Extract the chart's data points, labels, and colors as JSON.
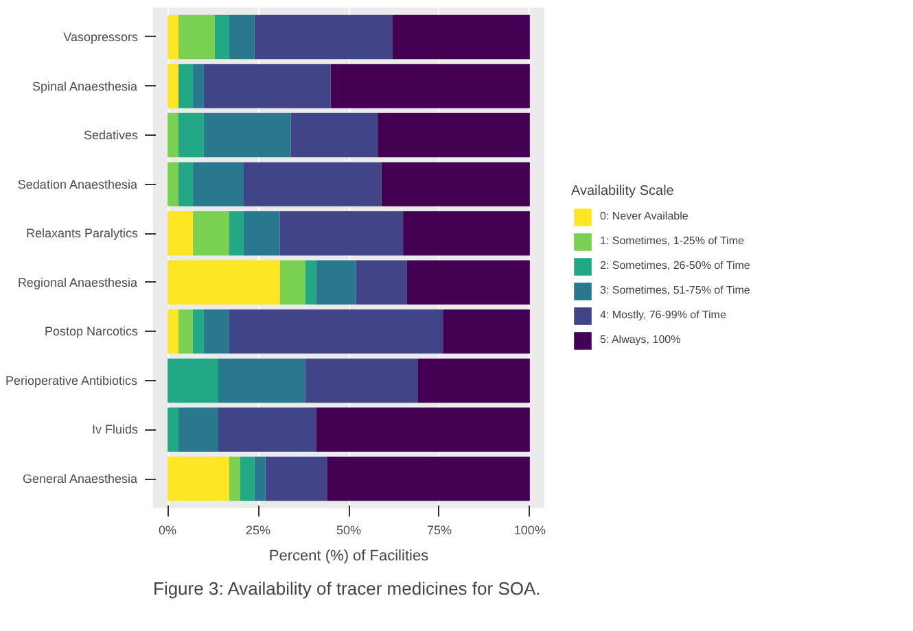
{
  "chart_data": {
    "type": "bar",
    "orientation": "horizontal",
    "stacked": true,
    "categories": [
      "Vasopressors",
      "Spinal Anaesthesia",
      "Sedatives",
      "Sedation Anaesthesia",
      "Relaxants Paralytics",
      "Regional Anaesthesia",
      "Postop Narcotics",
      "Perioperative Antibiotics",
      "Iv Fluids",
      "General Anaesthesia"
    ],
    "series": [
      {
        "name": "0: Never Available",
        "color": "#fde725",
        "values": [
          3,
          3,
          0,
          0,
          7,
          31,
          3,
          0,
          0,
          17
        ]
      },
      {
        "name": "1: Sometimes, 1-25% of Time",
        "color": "#7ad151",
        "values": [
          10,
          0,
          3,
          3,
          10,
          7,
          4,
          0,
          0,
          3
        ]
      },
      {
        "name": "2: Sometimes, 26-50% of Time",
        "color": "#22a884",
        "values": [
          4,
          4,
          7,
          4,
          4,
          3,
          3,
          14,
          3,
          4
        ]
      },
      {
        "name": "3: Sometimes, 51-75% of Time",
        "color": "#2a788e",
        "values": [
          7,
          3,
          24,
          14,
          10,
          11,
          7,
          24,
          11,
          3
        ]
      },
      {
        "name": "4: Mostly, 76-99% of Time",
        "color": "#414487",
        "values": [
          38,
          35,
          24,
          38,
          34,
          14,
          59,
          31,
          27,
          17
        ]
      },
      {
        "name": "5: Always, 100%",
        "color": "#440154",
        "values": [
          38,
          55,
          42,
          41,
          35,
          34,
          24,
          31,
          59,
          56
        ]
      }
    ],
    "xlim": [
      -4,
      104
    ],
    "xticks": [
      {
        "value": 0,
        "label": "0%"
      },
      {
        "value": 25,
        "label": "25%"
      },
      {
        "value": 50,
        "label": "50%"
      },
      {
        "value": 75,
        "label": "75%"
      },
      {
        "value": 100,
        "label": "100%"
      }
    ],
    "xlabel": "Percent (%) of Facilities",
    "legend_title": "Availability Scale",
    "legend": "right",
    "grid": "x",
    "annotations": [
      "Figure 3: Availability of tracer medicines for SOA."
    ]
  }
}
